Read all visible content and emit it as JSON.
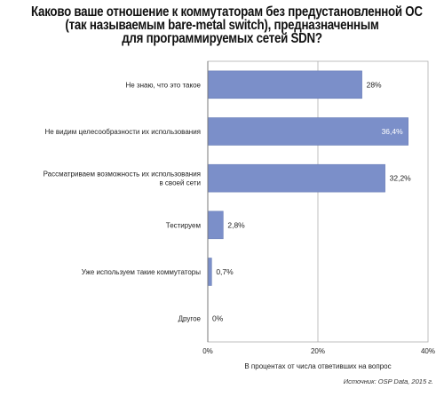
{
  "title_lines": [
    "Каково ваше отношение к коммутаторам без предустановленной ОС",
    "(так называемым bare-metal switch), предназначенным",
    "для программируемых сетей SDN?"
  ],
  "source": "Источник: OSP Data, 2015 г.",
  "colors": {
    "bar": "#7b8fc9",
    "bar_edge": "#5f74b0",
    "axis": "#7a7a7a",
    "grid": "#b0b0b0",
    "label_inside": "#ffffff",
    "label_outside": "#222222"
  },
  "chart_data": {
    "type": "bar",
    "orientation": "horizontal",
    "categories": [
      [
        "Не знаю, что это такое"
      ],
      [
        "Не видим целесообразности их использования"
      ],
      [
        "Рассматриваем возможность их использования",
        "в своей сети"
      ],
      [
        "Тестируем"
      ],
      [
        "Уже используем такие коммутаторы"
      ],
      [
        "Другое"
      ]
    ],
    "values": [
      28,
      36.4,
      32.2,
      2.8,
      0.7,
      0
    ],
    "value_labels": [
      "28%",
      "36,4%",
      "32,2%",
      "2,8%",
      "0,7%",
      "0%"
    ],
    "inside_label": [
      false,
      true,
      false,
      false,
      false,
      false
    ],
    "xlabel": "В процентах от числа ответивших на вопрос",
    "xlim": [
      0,
      40
    ],
    "xticks": [
      0,
      20,
      40
    ],
    "xtick_labels": [
      "0%",
      "20%",
      "40%"
    ],
    "grid": true,
    "legend": "none"
  }
}
